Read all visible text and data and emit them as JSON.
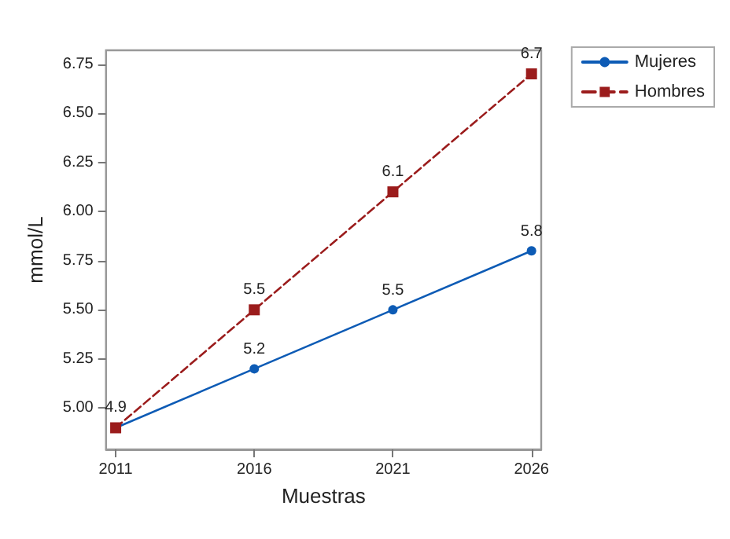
{
  "chart_data": {
    "type": "line",
    "xlabel": "Muestras",
    "ylabel": "mmol/L",
    "x": [
      2011,
      2016,
      2021,
      2026
    ],
    "xlim": [
      2010.65,
      2026.35
    ],
    "xticks": [
      2011,
      2016,
      2021,
      2026
    ],
    "ylim": [
      4.79,
      6.82
    ],
    "yticks": [
      {
        "value": 5,
        "label": "5.00"
      },
      {
        "value": 5.25,
        "label": "5.25"
      },
      {
        "value": 5.5,
        "label": "5.50"
      },
      {
        "value": 5.75,
        "label": "5.75"
      },
      {
        "value": 6,
        "label": "6.00"
      },
      {
        "value": 6.25,
        "label": "6.25"
      },
      {
        "value": 6.5,
        "label": "6.50"
      },
      {
        "value": 6.75,
        "label": "6.75"
      }
    ],
    "grid": false,
    "legend": "top right",
    "series": [
      {
        "name": "Mujeres",
        "color": "#0d5bb5",
        "values": [
          4.9,
          5.2,
          5.5,
          5.8
        ],
        "value_labels": [
          null,
          "5.2",
          "5.5",
          "5.8"
        ],
        "marker": "circle",
        "line_style": "solid"
      },
      {
        "name": "Hombres",
        "color": "#9b1c1c",
        "values": [
          4.9,
          5.5,
          6.1,
          6.7
        ],
        "value_labels": [
          "4.9",
          "5.5",
          "6.1",
          "6.7"
        ],
        "marker": "square",
        "line_style": "dashed"
      }
    ]
  }
}
